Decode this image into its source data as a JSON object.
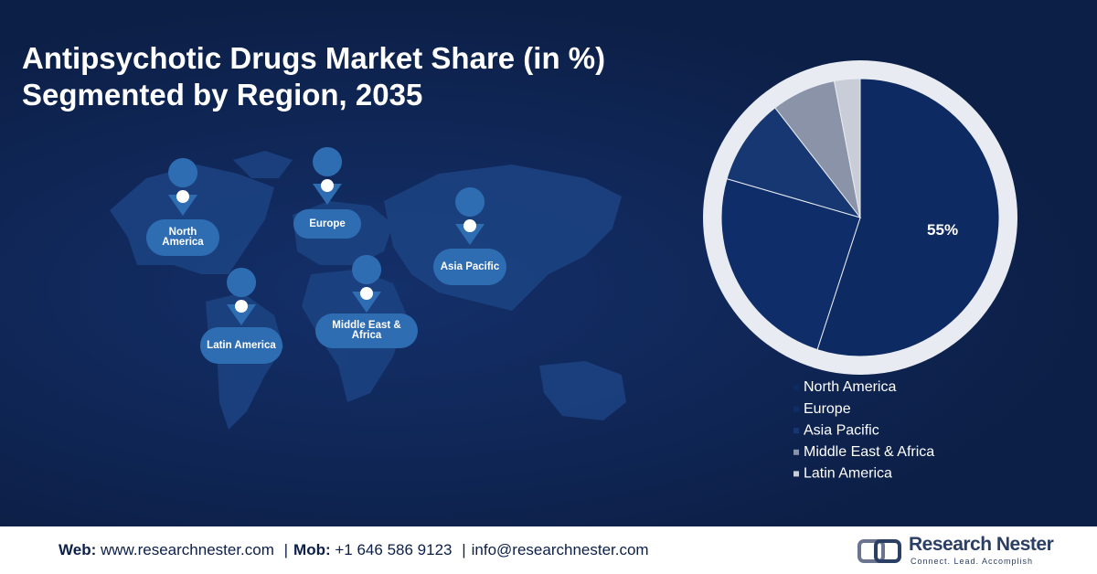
{
  "header": {
    "title": [
      "Antipsychotic Drugs Market Share (in %)",
      "Segmented by Region, 2035"
    ]
  },
  "map_labels": [
    "North America",
    "Europe",
    "Asia Pacific",
    "Latin America",
    "Middle East & Africa"
  ],
  "chart_data": {
    "type": "pie",
    "categories": [
      "North America",
      "Europe",
      "Asia Pacific",
      "Middle East & Africa",
      "Latin America"
    ],
    "values": [
      55,
      24.5,
      10,
      7.5,
      3
    ],
    "value_labels": [
      "55%",
      null,
      null,
      null,
      null
    ],
    "colors": [
      "#0d2a63",
      "#0f2d69",
      "#163772",
      "#8a93a8",
      "#c9cdd7"
    ]
  },
  "footer": {
    "web_label": "Web:",
    "web": "www.researchnester.com",
    "separator": "|",
    "mob_label": "Mob:",
    "mob": "+1 646 586 9123",
    "email": "info@researchnester.com",
    "brand": "Research Nester",
    "tagline": "Connect. Lead. Accomplish"
  }
}
